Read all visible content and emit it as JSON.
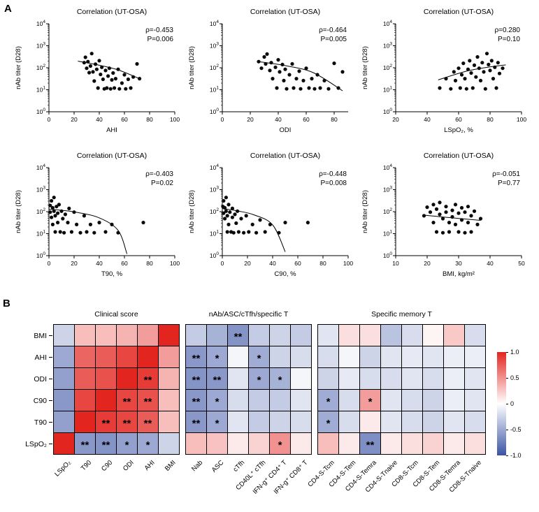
{
  "figure": {
    "panels": {
      "a": "A",
      "b": "B"
    }
  },
  "chart_data": [
    {
      "type": "scatter",
      "title": "Correlation (UT-OSA)",
      "stats": {
        "rho": "ρ=-0.453",
        "p": "P=0.006",
        "color": "#e8251d"
      },
      "xlabel": "AHI",
      "ylabel": "nAb titer (D28)",
      "x_range": [
        0,
        100
      ],
      "x_ticks": [
        0,
        20,
        40,
        60,
        80,
        100
      ],
      "y_scale": "log10",
      "y_range_exp": [
        0,
        4
      ],
      "points": [
        [
          28,
          170
        ],
        [
          29,
          300
        ],
        [
          30,
          95
        ],
        [
          31,
          190
        ],
        [
          32,
          60
        ],
        [
          33,
          120
        ],
        [
          34,
          440
        ],
        [
          35,
          65
        ],
        [
          36,
          25
        ],
        [
          37,
          145
        ],
        [
          38,
          85
        ],
        [
          39,
          12
        ],
        [
          40,
          210
        ],
        [
          41,
          50
        ],
        [
          42,
          105
        ],
        [
          43,
          30
        ],
        [
          44,
          11
        ],
        [
          45,
          75
        ],
        [
          46,
          12
        ],
        [
          47,
          42
        ],
        [
          48,
          95
        ],
        [
          49,
          11
        ],
        [
          50,
          28
        ],
        [
          51,
          58
        ],
        [
          52,
          12
        ],
        [
          53,
          32
        ],
        [
          55,
          85
        ],
        [
          56,
          11
        ],
        [
          58,
          20
        ],
        [
          60,
          48
        ],
        [
          61,
          11
        ],
        [
          63,
          30
        ],
        [
          65,
          12
        ],
        [
          67,
          38
        ],
        [
          70,
          150
        ],
        [
          72,
          32
        ]
      ],
      "trend": [
        [
          23,
          200
        ],
        [
          40,
          130
        ],
        [
          55,
          80
        ],
        [
          72,
          32
        ]
      ]
    },
    {
      "type": "scatter",
      "title": "Correlation (UT-OSA)",
      "stats": {
        "rho": "ρ=-0.464",
        "p": "P=0.005",
        "color": "#e8251d"
      },
      "xlabel": "ODI",
      "ylabel": "nAb titer (D28)",
      "x_range": [
        0,
        90
      ],
      "x_ticks": [
        0,
        20,
        40,
        60,
        80
      ],
      "y_scale": "log10",
      "y_range_exp": [
        0,
        4
      ],
      "points": [
        [
          26,
          190
        ],
        [
          28,
          95
        ],
        [
          30,
          310
        ],
        [
          31,
          150
        ],
        [
          32,
          420
        ],
        [
          34,
          75
        ],
        [
          35,
          170
        ],
        [
          36,
          32
        ],
        [
          38,
          105
        ],
        [
          39,
          12
        ],
        [
          40,
          230
        ],
        [
          41,
          65
        ],
        [
          43,
          140
        ],
        [
          44,
          26
        ],
        [
          45,
          85
        ],
        [
          46,
          11
        ],
        [
          48,
          48
        ],
        [
          50,
          150
        ],
        [
          51,
          12
        ],
        [
          53,
          32
        ],
        [
          55,
          70
        ],
        [
          56,
          11
        ],
        [
          58,
          26
        ],
        [
          60,
          95
        ],
        [
          62,
          12
        ],
        [
          64,
          32
        ],
        [
          66,
          11
        ],
        [
          68,
          48
        ],
        [
          70,
          12
        ],
        [
          73,
          26
        ],
        [
          76,
          11
        ],
        [
          80,
          160
        ],
        [
          83,
          12
        ],
        [
          86,
          65
        ]
      ],
      "trend": [
        [
          26,
          190
        ],
        [
          45,
          125
        ],
        [
          65,
          60
        ],
        [
          86,
          9
        ]
      ]
    },
    {
      "type": "scatter",
      "title": "Correlation (UT-OSA)",
      "stats": {
        "rho": "ρ=0.280",
        "p": "P=0.10",
        "color": "#000000"
      },
      "xlabel": "LSpO₂, %",
      "ylabel": "nAb titer (D28)",
      "x_range": [
        20,
        100
      ],
      "x_ticks": [
        20,
        40,
        60,
        80,
        100
      ],
      "y_scale": "log10",
      "y_range_exp": [
        0,
        4
      ],
      "points": [
        [
          48,
          12
        ],
        [
          52,
          32
        ],
        [
          55,
          11
        ],
        [
          57,
          65
        ],
        [
          58,
          26
        ],
        [
          60,
          95
        ],
        [
          61,
          12
        ],
        [
          62,
          48
        ],
        [
          63,
          160
        ],
        [
          64,
          32
        ],
        [
          65,
          11
        ],
        [
          66,
          85
        ],
        [
          67,
          210
        ],
        [
          68,
          58
        ],
        [
          69,
          12
        ],
        [
          70,
          130
        ],
        [
          71,
          38
        ],
        [
          72,
          310
        ],
        [
          73,
          95
        ],
        [
          74,
          26
        ],
        [
          75,
          170
        ],
        [
          76,
          65
        ],
        [
          77,
          11
        ],
        [
          78,
          440
        ],
        [
          79,
          140
        ],
        [
          80,
          75
        ],
        [
          81,
          210
        ],
        [
          82,
          32
        ],
        [
          83,
          105
        ],
        [
          84,
          12
        ],
        [
          85,
          170
        ],
        [
          86,
          55
        ],
        [
          88,
          95
        ]
      ],
      "trend": [
        [
          47,
          28
        ],
        [
          65,
          70
        ],
        [
          80,
          110
        ],
        [
          90,
          135
        ]
      ]
    },
    {
      "type": "scatter",
      "title": "Correlation (UT-OSA)",
      "stats": {
        "rho": "ρ=-0.403",
        "p": "P=0.02",
        "color": "#e8251d"
      },
      "xlabel": "T90, %",
      "ylabel": "nAb titer (D28)",
      "x_range": [
        0,
        100
      ],
      "x_ticks": [
        0,
        20,
        40,
        60,
        80,
        100
      ],
      "y_scale": "log10",
      "y_range_exp": [
        0,
        4
      ],
      "points": [
        [
          1,
          190
        ],
        [
          1,
          95
        ],
        [
          2,
          310
        ],
        [
          2,
          55
        ],
        [
          3,
          150
        ],
        [
          3,
          26
        ],
        [
          4,
          440
        ],
        [
          4,
          105
        ],
        [
          5,
          65
        ],
        [
          5,
          12
        ],
        [
          6,
          170
        ],
        [
          7,
          85
        ],
        [
          7,
          32
        ],
        [
          8,
          210
        ],
        [
          9,
          12
        ],
        [
          10,
          105
        ],
        [
          11,
          48
        ],
        [
          12,
          11
        ],
        [
          13,
          75
        ],
        [
          15,
          32
        ],
        [
          16,
          140
        ],
        [
          18,
          12
        ],
        [
          20,
          95
        ],
        [
          22,
          26
        ],
        [
          25,
          11
        ],
        [
          28,
          65
        ],
        [
          30,
          12
        ],
        [
          33,
          26
        ],
        [
          36,
          11
        ],
        [
          40,
          32
        ],
        [
          45,
          12
        ],
        [
          50,
          26
        ],
        [
          55,
          11
        ],
        [
          75,
          32
        ]
      ],
      "trend": [
        [
          0,
          130
        ],
        [
          20,
          98
        ],
        [
          40,
          52
        ],
        [
          55,
          14
        ],
        [
          62,
          1.2
        ]
      ]
    },
    {
      "type": "scatter",
      "title": "Correlation (UT-OSA)",
      "stats": {
        "rho": "ρ=-0.448",
        "p": "P=0.008",
        "color": "#e8251d"
      },
      "xlabel": "C90, %",
      "ylabel": "nAb titer (D28)",
      "x_range": [
        0,
        100
      ],
      "x_ticks": [
        0,
        20,
        40,
        60,
        80,
        100
      ],
      "y_scale": "log10",
      "y_range_exp": [
        0,
        4
      ],
      "points": [
        [
          0.5,
          170
        ],
        [
          1,
          310
        ],
        [
          1,
          85
        ],
        [
          2,
          150
        ],
        [
          2,
          48
        ],
        [
          3,
          440
        ],
        [
          3,
          105
        ],
        [
          4,
          65
        ],
        [
          4,
          12
        ],
        [
          5,
          210
        ],
        [
          5,
          26
        ],
        [
          6,
          95
        ],
        [
          7,
          12
        ],
        [
          8,
          140
        ],
        [
          8,
          55
        ],
        [
          9,
          11
        ],
        [
          10,
          75
        ],
        [
          11,
          30
        ],
        [
          12,
          105
        ],
        [
          13,
          12
        ],
        [
          15,
          48
        ],
        [
          17,
          11
        ],
        [
          19,
          65
        ],
        [
          21,
          12
        ],
        [
          24,
          26
        ],
        [
          27,
          11
        ],
        [
          30,
          42
        ],
        [
          34,
          12
        ],
        [
          38,
          26
        ],
        [
          45,
          11
        ],
        [
          50,
          32
        ],
        [
          68,
          32
        ]
      ],
      "trend": [
        [
          0,
          140
        ],
        [
          12,
          108
        ],
        [
          25,
          72
        ],
        [
          40,
          25
        ],
        [
          50,
          1.5
        ]
      ]
    },
    {
      "type": "scatter",
      "title": "Correlation (UT-OSA)",
      "stats": {
        "rho": "ρ=-0.051",
        "p": "P=0.77",
        "color": "#000000"
      },
      "xlabel": "BMI, kg/m²",
      "ylabel": "nAb titer (D28)",
      "x_range": [
        10,
        50
      ],
      "x_ticks": [
        10,
        20,
        30,
        40,
        50
      ],
      "y_scale": "log10",
      "y_range_exp": [
        0,
        4
      ],
      "points": [
        [
          19,
          65
        ],
        [
          20,
          160
        ],
        [
          21,
          95
        ],
        [
          22,
          32
        ],
        [
          22,
          210
        ],
        [
          23,
          130
        ],
        [
          23,
          12
        ],
        [
          24,
          75
        ],
        [
          24,
          260
        ],
        [
          25,
          48
        ],
        [
          25,
          11
        ],
        [
          26,
          170
        ],
        [
          26,
          95
        ],
        [
          27,
          32
        ],
        [
          27,
          12
        ],
        [
          28,
          115
        ],
        [
          28,
          58
        ],
        [
          29,
          210
        ],
        [
          29,
          26
        ],
        [
          30,
          85
        ],
        [
          30,
          12
        ],
        [
          31,
          150
        ],
        [
          31,
          42
        ],
        [
          32,
          11
        ],
        [
          32,
          95
        ],
        [
          33,
          32
        ],
        [
          33,
          170
        ],
        [
          34,
          65
        ],
        [
          34,
          12
        ],
        [
          35,
          105
        ],
        [
          36,
          26
        ],
        [
          37,
          48
        ]
      ],
      "trend": [
        [
          19,
          70
        ],
        [
          28,
          52
        ],
        [
          37,
          40
        ]
      ]
    },
    {
      "type": "heatmap",
      "group_titles": [
        "Clinical score",
        "nAb/ASC/cTfh/specific T",
        "Specific memory T"
      ],
      "row_labels": [
        "BMI",
        "AHI",
        "ODI",
        "C90",
        "T90",
        "LSpO₂"
      ],
      "col_groups": [
        [
          "LSpO₂",
          "T90",
          "C90",
          "ODI",
          "AHI",
          "BMI"
        ],
        [
          "Nab",
          "ASC",
          "cTfh",
          "CD40L⁺ cTfh",
          "IFN-g⁺ CD4⁺ T",
          "IFN-g⁺ CD8⁺ T"
        ],
        [
          "CD4-S-Tcm",
          "CD4-S-Tem",
          "CD4-S-Temra",
          "CD4-S-Tnaive",
          "CD8-S-Tcm",
          "CD8-S-Tem",
          "CD8-S-Temra",
          "CD8-S-Tnaive"
        ]
      ],
      "values": [
        [
          -0.25,
          0.3,
          0.3,
          0.35,
          0.45,
          1.0,
          -0.3,
          -0.45,
          -0.62,
          -0.3,
          -0.25,
          -0.3,
          -0.15,
          0.15,
          0.15,
          -0.35,
          -0.2,
          0.05,
          0.25,
          -0.2
        ],
        [
          -0.5,
          0.7,
          0.75,
          0.85,
          1.0,
          0.45,
          -0.6,
          -0.5,
          -0.05,
          -0.48,
          -0.25,
          -0.2,
          -0.2,
          -0.05,
          -0.25,
          -0.15,
          -0.12,
          -0.15,
          -0.1,
          -0.1
        ],
        [
          -0.55,
          0.75,
          0.8,
          1.0,
          0.9,
          0.35,
          -0.62,
          -0.6,
          -0.15,
          -0.5,
          -0.45,
          -0.05,
          -0.25,
          -0.12,
          -0.2,
          -0.2,
          -0.15,
          -0.2,
          -0.1,
          -0.15
        ],
        [
          -0.6,
          0.85,
          1.0,
          0.85,
          0.8,
          0.3,
          -0.6,
          -0.5,
          -0.2,
          -0.3,
          -0.3,
          -0.15,
          -0.48,
          -0.2,
          0.45,
          -0.15,
          -0.2,
          -0.25,
          -0.1,
          -0.15
        ],
        [
          -0.55,
          1.0,
          0.9,
          0.85,
          0.75,
          0.3,
          -0.6,
          -0.5,
          -0.15,
          -0.3,
          -0.25,
          -0.2,
          -0.48,
          -0.2,
          0.1,
          -0.15,
          -0.2,
          -0.25,
          -0.15,
          -0.2
        ],
        [
          1.0,
          -0.6,
          -0.62,
          -0.55,
          -0.5,
          -0.25,
          0.3,
          0.28,
          0.1,
          0.2,
          0.5,
          0.1,
          0.3,
          0.1,
          -0.65,
          0.1,
          0.15,
          0.2,
          0.1,
          0.15
        ]
      ],
      "stars": [
        [
          "",
          "",
          "",
          "",
          "",
          "",
          "",
          "",
          "**",
          "",
          "",
          "",
          "",
          "",
          "",
          "",
          "",
          "",
          "",
          ""
        ],
        [
          "",
          "",
          "",
          "",
          "",
          "",
          "**",
          "*",
          "",
          "*",
          "",
          "",
          "",
          "",
          "",
          "",
          "",
          "",
          "",
          ""
        ],
        [
          "",
          "",
          "",
          "",
          "**",
          "",
          "**",
          "**",
          "",
          "*",
          "*",
          "",
          "",
          "",
          "",
          "",
          "",
          "",
          "",
          ""
        ],
        [
          "",
          "",
          "",
          "**",
          "**",
          "",
          "**",
          "*",
          "",
          "",
          "",
          "",
          "*",
          "",
          "*",
          "",
          "",
          "",
          "",
          ""
        ],
        [
          "",
          "",
          "**",
          "**",
          "**",
          "",
          "**",
          "*",
          "",
          "",
          "",
          "",
          "*",
          "",
          "",
          "",
          "",
          "",
          "",
          ""
        ],
        [
          "",
          "**",
          "**",
          "*",
          "*",
          "",
          "",
          "",
          "",
          "",
          "*",
          "",
          "",
          "",
          "**",
          "",
          "",
          "",
          "",
          ""
        ]
      ],
      "colorbar": {
        "tick_labels": [
          "1.0",
          "0.5",
          "0",
          "-0.5",
          "-1.0"
        ],
        "max_color": "#e32520",
        "mid_color": "#ffffff",
        "min_color": "#3a53a4"
      }
    }
  ]
}
